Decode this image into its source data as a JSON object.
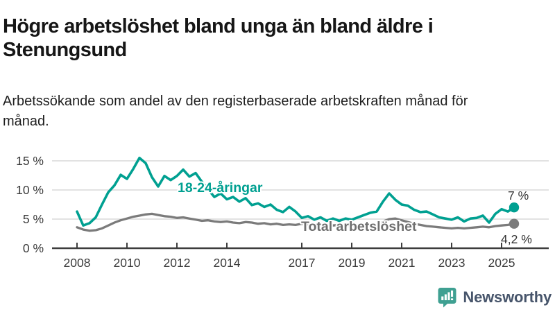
{
  "header": {
    "title": "Högre arbetslöshet bland unga än bland äldre i Stenungsund",
    "subtitle": "Arbetssökande som andel av den registerbaserade arbetskraften månad för månad."
  },
  "footer": {
    "brand": "Newsworthy"
  },
  "colors": {
    "youth_line": "#00a091",
    "total_line": "#7b7b7b",
    "total_label": "#6f6f6f",
    "axis": "#3d3d3d",
    "grid": "#d9d9d9",
    "tick_text": "#3a3a3a",
    "value_text": "#333333",
    "brand_icon": "#3fa092",
    "brand_text": "#47556b"
  },
  "chart_data": {
    "type": "line",
    "title": "Högre arbetslöshet bland unga än bland äldre i Stenungsund",
    "subtitle": "Arbetssökande som andel av den registerbaserade arbetskraften månad för månad.",
    "unit": "% av registerbaserad arbetskraft",
    "grid": "horizontal",
    "legend_position": "inline-labels",
    "xlim": [
      2007,
      2026.9
    ],
    "ylim": [
      0,
      16
    ],
    "y_tick_values": [
      0,
      5,
      10,
      15
    ],
    "y_tick_labels": [
      "0 %",
      "5 %",
      "10 %",
      "15 %"
    ],
    "x_tick_values": [
      2008,
      2010,
      2012,
      2014,
      2017,
      2019,
      2021,
      2023,
      2025
    ],
    "x_tick_labels": [
      "2008",
      "2010",
      "2012",
      "2014",
      "2017",
      "2019",
      "2021",
      "2023",
      "2025"
    ],
    "x": [
      2008,
      2008.25,
      2008.5,
      2008.75,
      2009,
      2009.25,
      2009.5,
      2009.75,
      2010,
      2010.25,
      2010.5,
      2010.75,
      2011,
      2011.25,
      2011.5,
      2011.75,
      2012,
      2012.25,
      2012.5,
      2012.75,
      2013,
      2013.25,
      2013.5,
      2013.75,
      2014,
      2014.25,
      2014.5,
      2014.75,
      2015,
      2015.25,
      2015.5,
      2015.75,
      2016,
      2016.25,
      2016.5,
      2016.75,
      2017,
      2017.25,
      2017.5,
      2017.75,
      2018,
      2018.25,
      2018.5,
      2018.75,
      2019,
      2019.25,
      2019.5,
      2019.75,
      2020,
      2020.25,
      2020.5,
      2020.75,
      2021,
      2021.25,
      2021.5,
      2021.75,
      2022,
      2022.25,
      2022.5,
      2022.75,
      2023,
      2023.25,
      2023.5,
      2023.75,
      2024,
      2024.25,
      2024.5,
      2024.75,
      2025,
      2025.25,
      2025.5
    ],
    "series": [
      {
        "name": "18-24-åringar",
        "color": "#00a091",
        "end_label": "7 %",
        "end_value": 7.0,
        "values": [
          6.3,
          3.9,
          4.3,
          5.3,
          7.5,
          9.6,
          10.8,
          12.6,
          11.9,
          13.6,
          15.5,
          14.6,
          12.2,
          10.6,
          12.4,
          11.7,
          12.4,
          13.5,
          12.3,
          12.9,
          11.4,
          10.1,
          8.8,
          9.4,
          8.4,
          8.8,
          8.0,
          8.6,
          7.4,
          7.7,
          7.1,
          7.5,
          6.6,
          6.2,
          7.1,
          6.3,
          5.2,
          5.5,
          4.9,
          5.3,
          4.7,
          5.1,
          4.7,
          5.1,
          4.9,
          5.3,
          5.7,
          6.1,
          6.3,
          8.0,
          9.4,
          8.3,
          7.5,
          7.3,
          6.6,
          6.2,
          6.3,
          5.8,
          5.3,
          5.1,
          4.9,
          5.3,
          4.6,
          5.1,
          5.2,
          5.6,
          4.4,
          5.9,
          6.7,
          6.3,
          7.0
        ]
      },
      {
        "name": "Total arbetslöshet",
        "color": "#7b7b7b",
        "end_label": "4,2 %",
        "end_value": 4.2,
        "values": [
          3.6,
          3.2,
          3.0,
          3.1,
          3.4,
          3.9,
          4.4,
          4.8,
          5.1,
          5.4,
          5.6,
          5.8,
          5.9,
          5.7,
          5.5,
          5.4,
          5.2,
          5.3,
          5.1,
          4.9,
          4.7,
          4.8,
          4.6,
          4.5,
          4.6,
          4.4,
          4.3,
          4.5,
          4.4,
          4.2,
          4.3,
          4.1,
          4.2,
          4.0,
          4.1,
          4.0,
          4.2,
          4.1,
          4.0,
          4.1,
          4.0,
          3.9,
          4.0,
          3.9,
          3.8,
          3.9,
          3.8,
          3.9,
          4.0,
          4.6,
          5.0,
          5.1,
          4.8,
          4.5,
          4.2,
          4.0,
          3.8,
          3.7,
          3.6,
          3.5,
          3.4,
          3.5,
          3.4,
          3.5,
          3.6,
          3.7,
          3.6,
          3.8,
          3.9,
          4.0,
          4.2
        ]
      }
    ]
  }
}
